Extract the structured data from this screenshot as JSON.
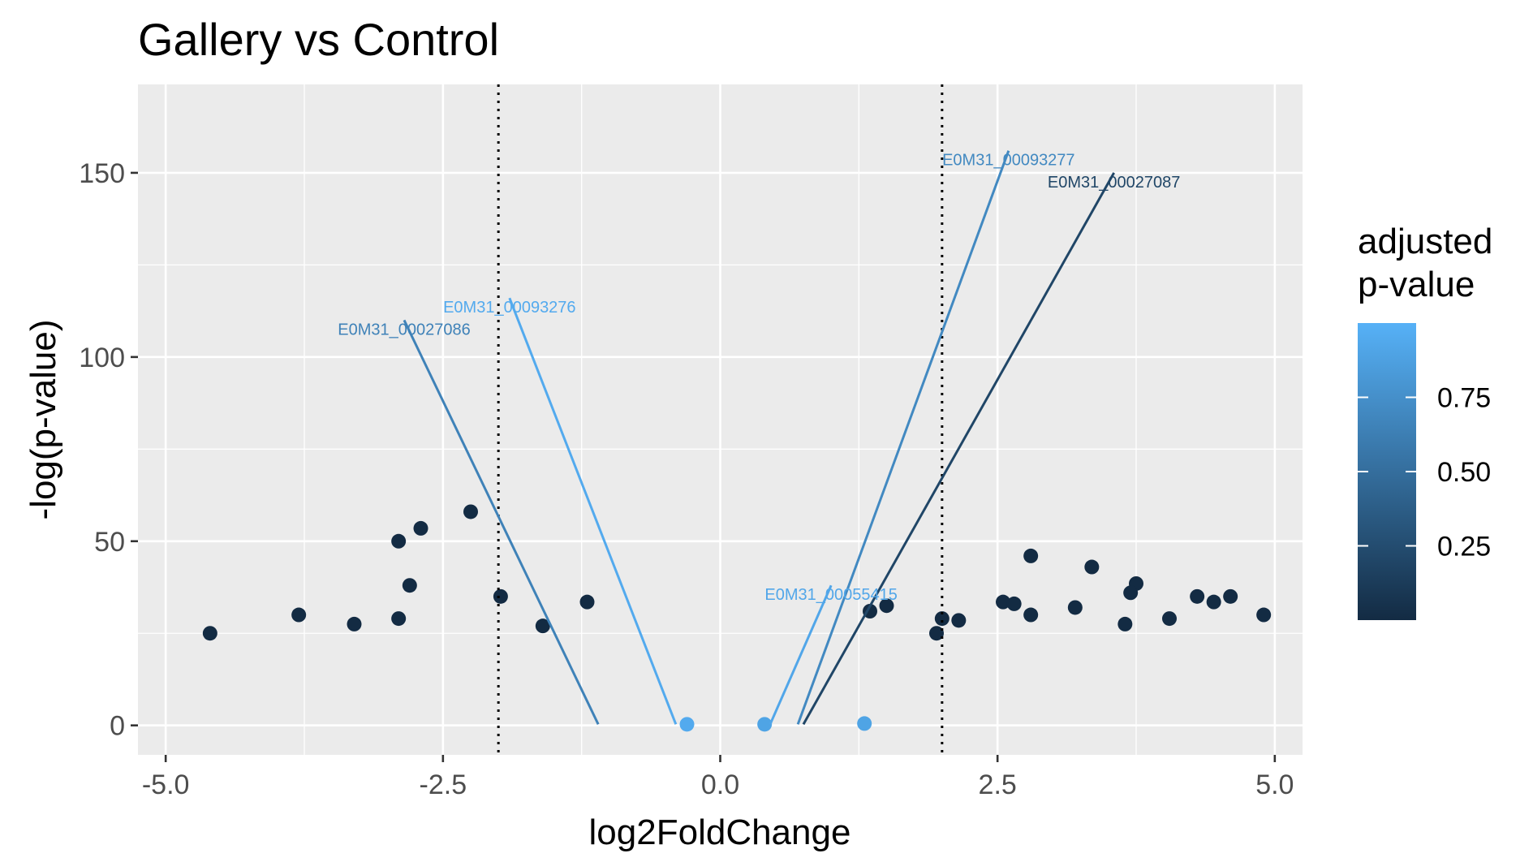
{
  "chart_data": {
    "type": "scatter",
    "title": "Gallery vs Control",
    "xlabel": "log2FoldChange",
    "ylabel": "-log(p-value)",
    "xlim": [
      -5.25,
      5.25
    ],
    "ylim": [
      -8,
      174
    ],
    "x_ticks": [
      -5.0,
      -2.5,
      0.0,
      2.5,
      5.0
    ],
    "x_tick_labels": [
      "-5.0",
      "-2.5",
      "0.0",
      "2.5",
      "5.0"
    ],
    "y_ticks": [
      0,
      50,
      100,
      150
    ],
    "y_tick_labels": [
      "0",
      "50",
      "100",
      "150"
    ],
    "grid": true,
    "panel_background": "#ebebeb",
    "vlines": [
      -2,
      2
    ],
    "legend": {
      "title_lines": [
        "adjusted",
        "p-value"
      ],
      "position": "right",
      "ticks": [
        0.25,
        0.5,
        0.75
      ],
      "tick_labels": [
        "0.25",
        "0.50",
        "0.75"
      ],
      "range": [
        0,
        1
      ],
      "color_low": "#132b43",
      "color_high": "#56b1f7"
    },
    "labeled_points": [
      {
        "label": "E0M31_00093277",
        "x": 0.7,
        "y": 0.3,
        "label_x": 2.6,
        "label_y": 156,
        "adj_p": 0.7
      },
      {
        "label": "E0M31_00027087",
        "x": 0.75,
        "y": 0.3,
        "label_x": 3.55,
        "label_y": 150,
        "adj_p": 0.2
      },
      {
        "label": "E0M31_00093276",
        "x": -0.4,
        "y": 0.3,
        "label_x": -1.9,
        "label_y": 116,
        "adj_p": 0.95
      },
      {
        "label": "E0M31_00027086",
        "x": -1.1,
        "y": 0.3,
        "label_x": -2.85,
        "label_y": 110,
        "adj_p": 0.65
      },
      {
        "label": "E0M31_00055415",
        "x": 0.45,
        "y": 0.3,
        "label_x": 1.0,
        "label_y": 38,
        "adj_p": 0.92
      }
    ],
    "series": [
      {
        "values": [
          {
            "x": -2.25,
            "y": 58,
            "adj_p": 0.0
          },
          {
            "x": -2.7,
            "y": 53.5,
            "adj_p": 0.0
          },
          {
            "x": -2.9,
            "y": 50,
            "adj_p": 0.0
          },
          {
            "x": -2.8,
            "y": 38,
            "adj_p": 0.0
          },
          {
            "x": -1.98,
            "y": 35,
            "adj_p": 0.0
          },
          {
            "x": -1.2,
            "y": 33.5,
            "adj_p": 0.0
          },
          {
            "x": -2.9,
            "y": 29,
            "adj_p": 0.0
          },
          {
            "x": -3.8,
            "y": 30,
            "adj_p": 0.0
          },
          {
            "x": -1.6,
            "y": 27,
            "adj_p": 0.0
          },
          {
            "x": -3.3,
            "y": 27.5,
            "adj_p": 0.0
          },
          {
            "x": -4.6,
            "y": 25,
            "adj_p": 0.0
          },
          {
            "x": 2.8,
            "y": 46,
            "adj_p": 0.0
          },
          {
            "x": 3.35,
            "y": 43,
            "adj_p": 0.0
          },
          {
            "x": 3.75,
            "y": 38.5,
            "adj_p": 0.0
          },
          {
            "x": 3.7,
            "y": 36,
            "adj_p": 0.0
          },
          {
            "x": 4.3,
            "y": 35,
            "adj_p": 0.0
          },
          {
            "x": 4.6,
            "y": 35,
            "adj_p": 0.0
          },
          {
            "x": 2.55,
            "y": 33.5,
            "adj_p": 0.0
          },
          {
            "x": 4.45,
            "y": 33.5,
            "adj_p": 0.0
          },
          {
            "x": 1.5,
            "y": 32.5,
            "adj_p": 0.0
          },
          {
            "x": 2.65,
            "y": 33,
            "adj_p": 0.0
          },
          {
            "x": 3.2,
            "y": 32,
            "adj_p": 0.0
          },
          {
            "x": 1.35,
            "y": 31,
            "adj_p": 0.0
          },
          {
            "x": 2.8,
            "y": 30,
            "adj_p": 0.0
          },
          {
            "x": 4.9,
            "y": 30,
            "adj_p": 0.0
          },
          {
            "x": 2.0,
            "y": 29,
            "adj_p": 0.0
          },
          {
            "x": 2.15,
            "y": 28.5,
            "adj_p": 0.0
          },
          {
            "x": 3.65,
            "y": 27.5,
            "adj_p": 0.0
          },
          {
            "x": 4.05,
            "y": 29,
            "adj_p": 0.0
          },
          {
            "x": 1.95,
            "y": 25,
            "adj_p": 0.0
          },
          {
            "x": 0.4,
            "y": 0.3,
            "adj_p": 0.9
          },
          {
            "x": -0.3,
            "y": 0.3,
            "adj_p": 0.95
          },
          {
            "x": 1.3,
            "y": 0.5,
            "adj_p": 0.9
          }
        ]
      }
    ]
  }
}
